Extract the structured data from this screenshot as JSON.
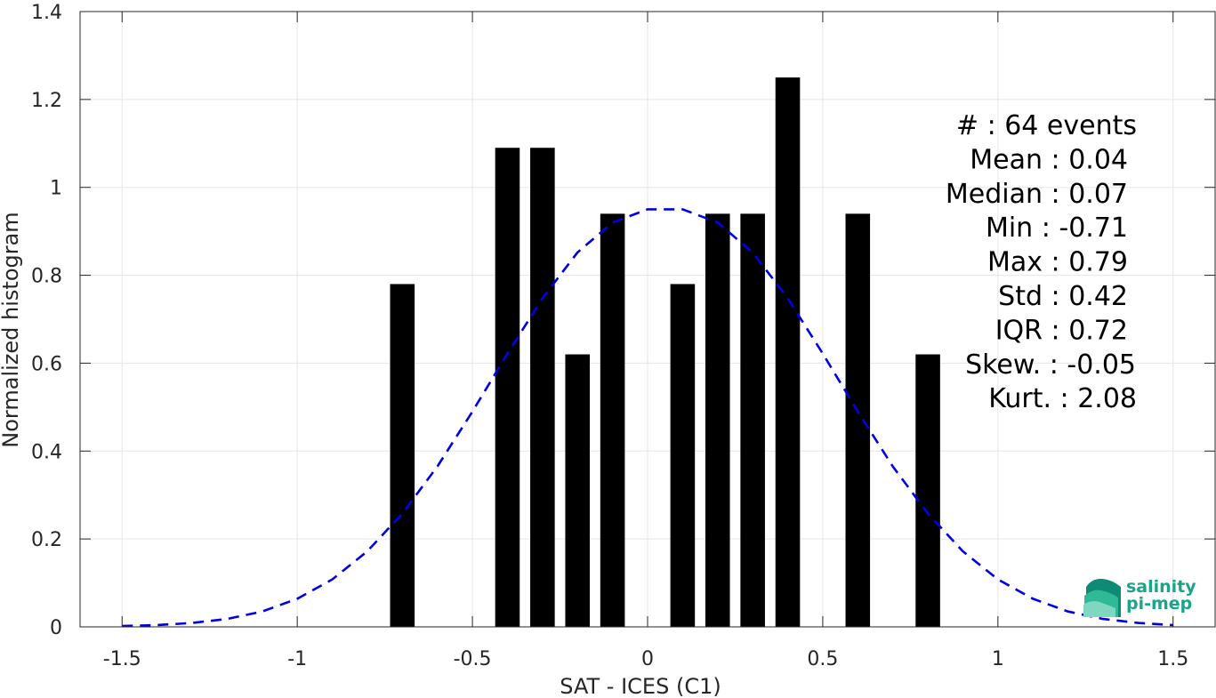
{
  "chart_data": {
    "type": "bar",
    "xlabel": "SAT - ICES (C1)",
    "ylabel": "Normalized histogram",
    "xlim": [
      -1.62,
      1.62
    ],
    "ylim": [
      0,
      1.4
    ],
    "grid": true,
    "x_ticks": [
      -1.5,
      -1,
      -0.5,
      0,
      0.5,
      1,
      1.5
    ],
    "x_tick_labels": [
      "-1.5",
      "-1",
      "-0.5",
      "0",
      "0.5",
      "1",
      "1.5"
    ],
    "y_ticks": [
      0,
      0.2,
      0.4,
      0.6,
      0.8,
      1,
      1.2,
      1.4
    ],
    "y_tick_labels": [
      "0",
      "0.2",
      "0.4",
      "0.6",
      "0.8",
      "1",
      "1.2",
      "1.4"
    ],
    "bars": {
      "color": "#000000",
      "x": [
        -0.7,
        -0.4,
        -0.3,
        -0.2,
        -0.1,
        0.1,
        0.2,
        0.3,
        0.4,
        0.6,
        0.8
      ],
      "values": [
        0.78,
        1.09,
        1.09,
        0.62,
        0.94,
        0.78,
        0.94,
        0.94,
        1.25,
        0.94,
        0.62
      ],
      "width": 0.07
    },
    "fit_curve": {
      "style": "dashed",
      "color": "#0000e6",
      "x": [
        -1.5,
        -1.4,
        -1.3,
        -1.2,
        -1.1,
        -1.0,
        -0.9,
        -0.8,
        -0.7,
        -0.6,
        -0.5,
        -0.4,
        -0.3,
        -0.2,
        -0.1,
        0.0,
        0.1,
        0.2,
        0.3,
        0.4,
        0.5,
        0.6,
        0.7,
        0.8,
        0.9,
        1.0,
        1.1,
        1.2,
        1.3,
        1.4,
        1.5
      ],
      "y": [
        0.002,
        0.004,
        0.009,
        0.018,
        0.035,
        0.064,
        0.108,
        0.172,
        0.258,
        0.365,
        0.49,
        0.622,
        0.748,
        0.852,
        0.92,
        0.95,
        0.95,
        0.92,
        0.852,
        0.748,
        0.622,
        0.49,
        0.365,
        0.258,
        0.172,
        0.108,
        0.064,
        0.035,
        0.018,
        0.009,
        0.004
      ]
    },
    "stats": [
      "#  : 64 events",
      "Mean : 0.04",
      "Median : 0.07",
      "Min : -0.71",
      "Max : 0.79",
      "Std : 0.42",
      "IQR : 0.72",
      "Skew. : -0.05",
      "Kurt. : 2.08"
    ]
  },
  "logo": {
    "line1": "salinity",
    "line2": "pi-mep"
  },
  "colors": {
    "grid": "#e5e5e5",
    "axis": "#262626",
    "logo": "#1aa58a"
  }
}
